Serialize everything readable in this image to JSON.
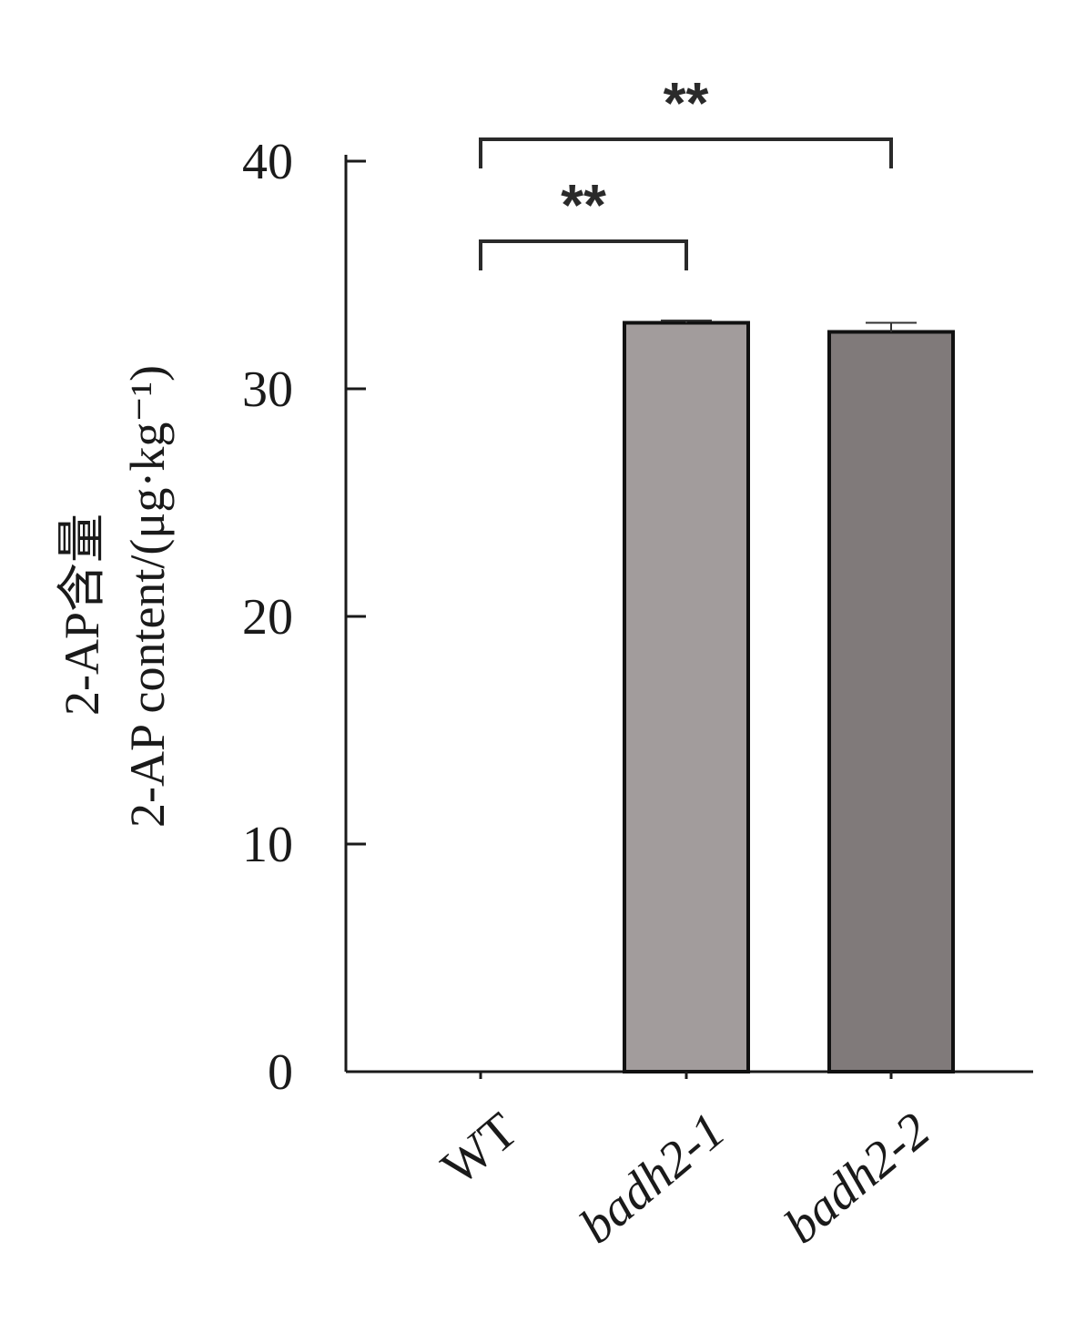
{
  "chart_data": {
    "type": "bar",
    "categories": [
      "WT",
      "badh2-1",
      "badh2-2"
    ],
    "values": [
      0,
      32.9,
      32.5
    ],
    "errors": [
      0,
      0.1,
      0.4
    ],
    "bar_colors": [
      "#ffffff",
      "#a29c9c",
      "#807a7a"
    ],
    "ylabel_line1": "2-AP含量",
    "ylabel_line2": "2-AP content/(μg·kg⁻¹)",
    "ylim": [
      0,
      40
    ],
    "yticks": [
      "0",
      "10",
      "20",
      "30",
      "40"
    ],
    "significance": [
      {
        "from": "WT",
        "to": "badh2-1",
        "label": "**"
      },
      {
        "from": "WT",
        "to": "badh2-2",
        "label": "**"
      }
    ],
    "grid": false,
    "legend": "none"
  }
}
